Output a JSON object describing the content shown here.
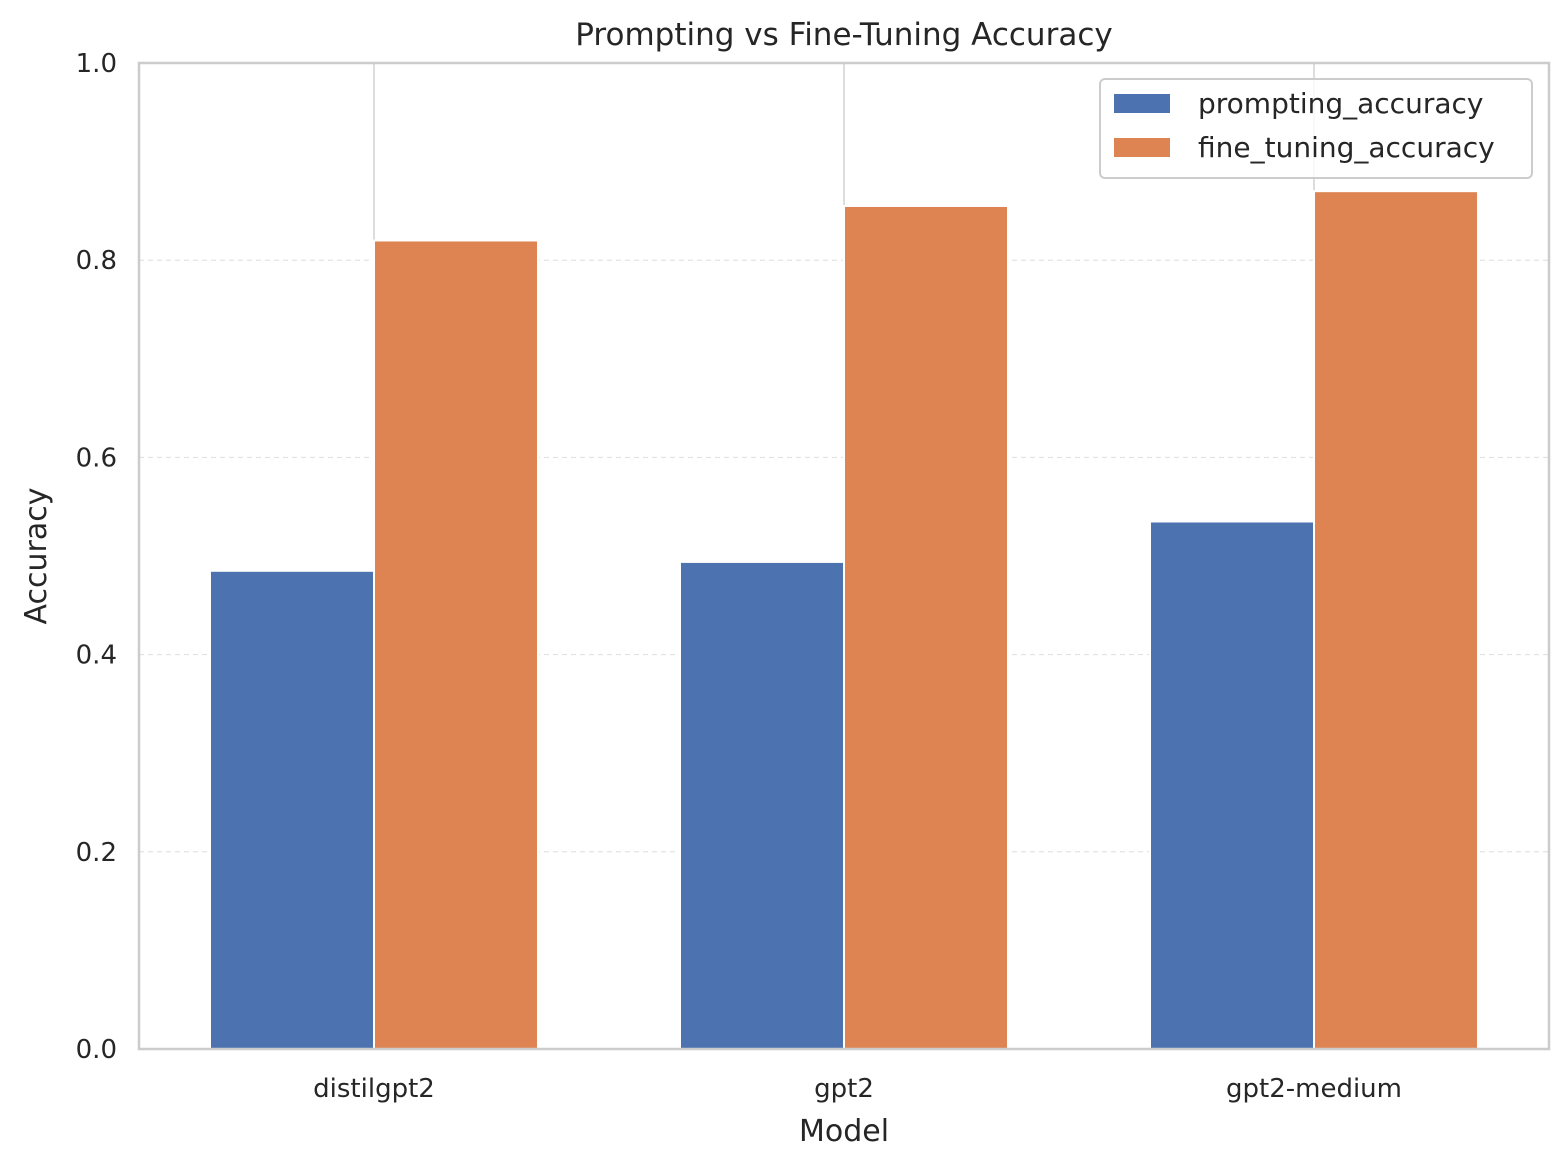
{
  "chart_data": {
    "type": "bar",
    "title": "Prompting vs Fine-Tuning Accuracy",
    "xlabel": "Model",
    "ylabel": "Accuracy",
    "categories": [
      "distilgpt2",
      "gpt2",
      "gpt2-medium"
    ],
    "series": [
      {
        "name": "prompting_accuracy",
        "values": [
          0.485,
          0.494,
          0.535
        ],
        "color": "#4c72b0"
      },
      {
        "name": "fine_tuning_accuracy",
        "values": [
          0.82,
          0.855,
          0.87
        ],
        "color": "#dd8452"
      }
    ],
    "ylim": [
      0.0,
      1.0
    ],
    "yticks": [
      "0.0",
      "0.2",
      "0.4",
      "0.6",
      "0.8",
      "1.0"
    ],
    "grid": true,
    "legend_position": "top-right"
  }
}
